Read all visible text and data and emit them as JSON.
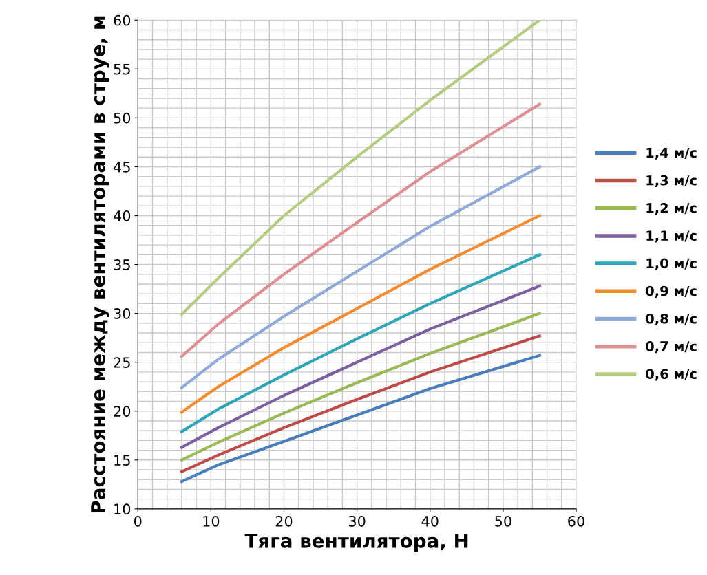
{
  "chart_data": {
    "type": "line",
    "xlabel": "Тяга вентилятора, Н",
    "ylabel": "Расстояние между вентиляторами в струе, м",
    "x": [
      6,
      11,
      20,
      30,
      40,
      55
    ],
    "series": [
      {
        "name": "1,4 м/с",
        "color": "#4a7ebb",
        "values": [
          12.8,
          14.5,
          16.9,
          19.6,
          22.3,
          25.7
        ]
      },
      {
        "name": "1,3 м/с",
        "color": "#be4b48",
        "values": [
          13.8,
          15.5,
          18.3,
          21.2,
          24.0,
          27.7
        ]
      },
      {
        "name": "1,2 м/с",
        "color": "#98b954",
        "values": [
          15.0,
          16.8,
          19.8,
          22.9,
          25.9,
          30.0
        ]
      },
      {
        "name": "1,1 м/с",
        "color": "#7d60a0",
        "values": [
          16.3,
          18.3,
          21.6,
          25.0,
          28.4,
          32.8
        ]
      },
      {
        "name": "1,0 м/с",
        "color": "#31a5b8",
        "values": [
          17.9,
          20.2,
          23.7,
          27.4,
          31.0,
          36.0
        ]
      },
      {
        "name": "0,9 м/с",
        "color": "#f58b2f",
        "values": [
          19.9,
          22.5,
          26.5,
          30.5,
          34.5,
          40.0
        ]
      },
      {
        "name": "0,8 м/с",
        "color": "#8faad9",
        "values": [
          22.4,
          25.3,
          29.7,
          34.3,
          38.9,
          45.0
        ]
      },
      {
        "name": "0,7 м/с",
        "color": "#de8f92",
        "values": [
          25.6,
          28.9,
          34.0,
          39.3,
          44.5,
          51.4
        ]
      },
      {
        "name": "0,6 м/с",
        "color": "#b3cc82",
        "values": [
          29.9,
          33.6,
          40.0,
          46.0,
          51.8,
          60.0
        ]
      }
    ],
    "xlim": [
      0,
      60
    ],
    "xticks": [
      0,
      10,
      20,
      30,
      40,
      50,
      60
    ],
    "ylim": [
      10,
      60
    ],
    "yticks": [
      10,
      15,
      20,
      25,
      30,
      35,
      40,
      45,
      50,
      55,
      60
    ],
    "grid": true,
    "legend": "right",
    "marker": "none",
    "line_style": "solid"
  }
}
